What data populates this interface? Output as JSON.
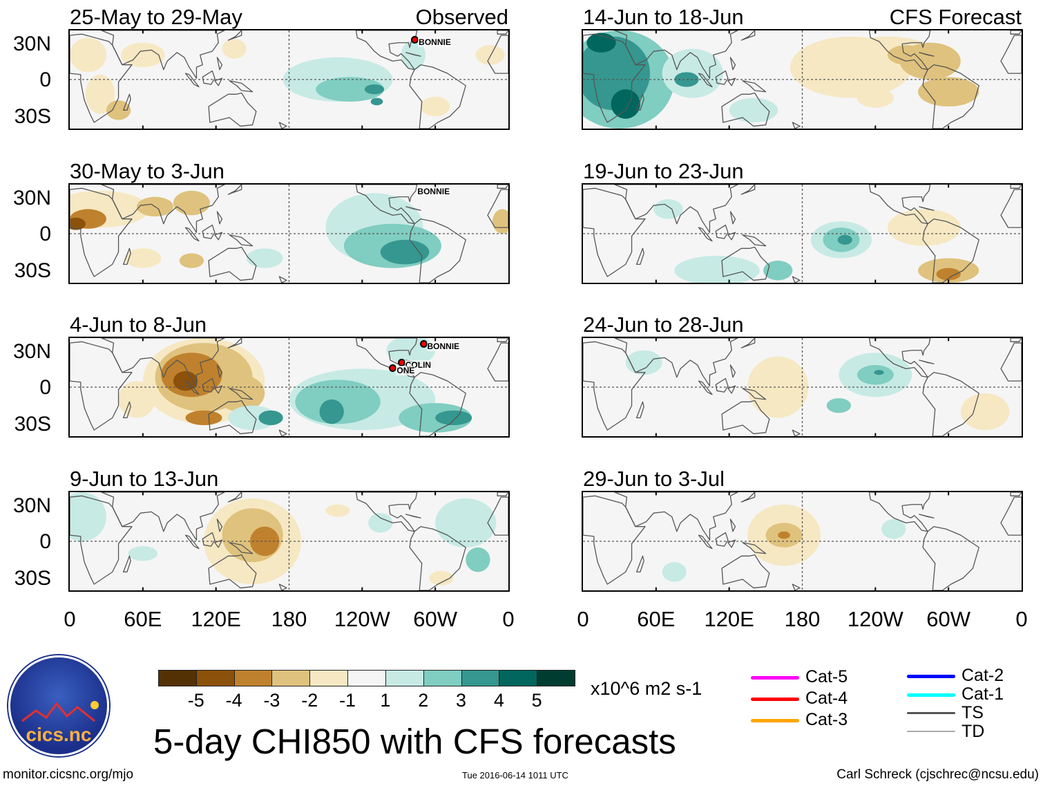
{
  "headers": {
    "observed": "Observed",
    "forecast": "CFS Forecast"
  },
  "y_axis_labels": [
    "30N",
    "0",
    "30S"
  ],
  "x_axis_labels": [
    "0",
    "60E",
    "120E",
    "180",
    "120W",
    "60W",
    "0"
  ],
  "panels": [
    {
      "title": "25-May to 29-May",
      "group": "observed",
      "features": [
        [
          15,
          20,
          15,
          14,
          -1
        ],
        [
          25,
          -12,
          12,
          16,
          -1
        ],
        [
          40,
          -25,
          10,
          8,
          -2
        ],
        [
          60,
          20,
          18,
          10,
          -1
        ],
        [
          135,
          25,
          10,
          8,
          -1
        ],
        [
          220,
          0,
          45,
          18,
          1
        ],
        [
          230,
          -8,
          28,
          10,
          2
        ],
        [
          250,
          -8,
          8,
          4,
          3
        ],
        [
          252,
          -18,
          5,
          3,
          3
        ],
        [
          282,
          20,
          10,
          12,
          1
        ],
        [
          300,
          -22,
          12,
          8,
          -1
        ],
        [
          345,
          20,
          12,
          8,
          -1
        ]
      ],
      "storms": [
        {
          "name": "BONNIE",
          "lon": 283,
          "lat": 32
        }
      ]
    },
    {
      "title": "30-May to 3-Jun",
      "group": "observed",
      "features": [
        [
          25,
          20,
          40,
          15,
          -1
        ],
        [
          15,
          12,
          15,
          8,
          -3
        ],
        [
          5,
          8,
          8,
          5,
          -4
        ],
        [
          70,
          22,
          15,
          8,
          -2
        ],
        [
          100,
          25,
          15,
          10,
          -2
        ],
        [
          60,
          -20,
          15,
          8,
          -1
        ],
        [
          100,
          -22,
          10,
          6,
          -2
        ],
        [
          160,
          -20,
          15,
          8,
          1
        ],
        [
          250,
          5,
          40,
          28,
          1
        ],
        [
          265,
          -10,
          40,
          18,
          2
        ],
        [
          275,
          -15,
          20,
          10,
          3
        ],
        [
          355,
          10,
          8,
          10,
          -2
        ]
      ],
      "storms": [
        {
          "name": "BONNIE",
          "lon": 282,
          "lat": 36
        }
      ]
    },
    {
      "title": "4-Jun to 8-Jun",
      "group": "observed",
      "features": [
        [
          110,
          5,
          50,
          35,
          -1
        ],
        [
          110,
          8,
          40,
          28,
          -2
        ],
        [
          100,
          10,
          25,
          18,
          -3
        ],
        [
          95,
          5,
          10,
          8,
          -4
        ],
        [
          140,
          -5,
          20,
          15,
          -2
        ],
        [
          110,
          -25,
          15,
          6,
          -3
        ],
        [
          55,
          -10,
          15,
          15,
          -1
        ],
        [
          150,
          -25,
          20,
          10,
          1
        ],
        [
          165,
          -25,
          10,
          6,
          3
        ],
        [
          240,
          -10,
          60,
          25,
          1
        ],
        [
          220,
          -12,
          35,
          18,
          2
        ],
        [
          215,
          -20,
          10,
          10,
          3
        ],
        [
          280,
          30,
          20,
          12,
          1
        ],
        [
          300,
          -25,
          30,
          12,
          2
        ],
        [
          315,
          -25,
          15,
          6,
          3
        ]
      ],
      "storms": [
        {
          "name": "BONNIE",
          "lon": 290,
          "lat": 35
        },
        {
          "name": "COLIN",
          "lon": 272,
          "lat": 20
        },
        {
          "name": "ONE",
          "lon": 265,
          "lat": 15
        }
      ]
    },
    {
      "title": "9-Jun to 13-Jun",
      "group": "observed",
      "features": [
        [
          10,
          20,
          20,
          20,
          1
        ],
        [
          150,
          0,
          40,
          35,
          -1
        ],
        [
          150,
          5,
          25,
          22,
          -2
        ],
        [
          160,
          0,
          12,
          12,
          -3
        ],
        [
          60,
          -10,
          12,
          6,
          1
        ],
        [
          220,
          25,
          10,
          5,
          -1
        ],
        [
          255,
          15,
          10,
          8,
          1
        ],
        [
          325,
          15,
          25,
          20,
          1
        ],
        [
          335,
          -15,
          10,
          10,
          2
        ],
        [
          305,
          -30,
          10,
          6,
          -1
        ]
      ],
      "storms": []
    },
    {
      "title": "14-Jun to 18-Jun",
      "group": "forecast",
      "features": [
        [
          30,
          0,
          45,
          40,
          2
        ],
        [
          25,
          5,
          30,
          30,
          3
        ],
        [
          35,
          -20,
          12,
          12,
          4
        ],
        [
          15,
          30,
          12,
          8,
          4
        ],
        [
          90,
          5,
          25,
          20,
          1
        ],
        [
          85,
          0,
          10,
          6,
          3
        ],
        [
          140,
          -25,
          20,
          10,
          1
        ],
        [
          220,
          10,
          50,
          25,
          -1
        ],
        [
          250,
          20,
          40,
          15,
          -1
        ],
        [
          285,
          15,
          25,
          15,
          -2
        ],
        [
          265,
          20,
          15,
          8,
          -2
        ],
        [
          300,
          -10,
          25,
          12,
          -2
        ],
        [
          240,
          -15,
          15,
          8,
          -1
        ]
      ],
      "storms": []
    },
    {
      "title": "19-Jun to 23-Jun",
      "group": "forecast",
      "features": [
        [
          110,
          -30,
          35,
          12,
          1
        ],
        [
          160,
          -30,
          12,
          8,
          2
        ],
        [
          212,
          -5,
          25,
          15,
          1
        ],
        [
          212,
          -5,
          15,
          10,
          2
        ],
        [
          215,
          -5,
          6,
          4,
          3
        ],
        [
          280,
          5,
          30,
          15,
          -1
        ],
        [
          300,
          -30,
          25,
          10,
          -2
        ],
        [
          300,
          -33,
          10,
          5,
          -3
        ],
        [
          70,
          20,
          12,
          8,
          1
        ]
      ],
      "storms": []
    },
    {
      "title": "24-Jun to 28-Jun",
      "group": "forecast",
      "features": [
        [
          160,
          0,
          25,
          25,
          -1
        ],
        [
          240,
          10,
          30,
          18,
          1
        ],
        [
          240,
          10,
          15,
          8,
          2
        ],
        [
          243,
          12,
          4,
          2,
          3
        ],
        [
          210,
          -15,
          10,
          6,
          2
        ],
        [
          330,
          -20,
          20,
          15,
          -1
        ],
        [
          50,
          20,
          15,
          10,
          1
        ]
      ],
      "storms": []
    },
    {
      "title": "29-Jun to 3-Jul",
      "group": "forecast",
      "features": [
        [
          165,
          5,
          30,
          25,
          -1
        ],
        [
          165,
          5,
          15,
          10,
          -2
        ],
        [
          165,
          5,
          5,
          3,
          -3
        ],
        [
          255,
          10,
          10,
          8,
          1
        ],
        [
          75,
          -25,
          10,
          8,
          1
        ]
      ],
      "storms": []
    }
  ],
  "colorbar": {
    "colors": [
      "#543005",
      "#8c510a",
      "#bf812d",
      "#dfc27d",
      "#f6e8c3",
      "#f5f5f5",
      "#c7eae5",
      "#80cdc1",
      "#35978f",
      "#01665e",
      "#003c30"
    ],
    "labels": [
      "-5",
      "-4",
      "-3",
      "-2",
      "-1",
      "1",
      "2",
      "3",
      "4",
      "5"
    ],
    "units": "x10^6 m2 s-1"
  },
  "legend": [
    {
      "label": "Cat-5",
      "color": "#ff00ff"
    },
    {
      "label": "Cat-4",
      "color": "#ff0000"
    },
    {
      "label": "Cat-3",
      "color": "#ffa500"
    },
    {
      "label": "Cat-2",
      "color": "#0000ff"
    },
    {
      "label": "Cat-1",
      "color": "#00ffff"
    },
    {
      "label": "TS",
      "color": "#555555"
    },
    {
      "label": "TD",
      "color": "#aaaaaa"
    }
  ],
  "logo": {
    "text": "cics.nc",
    "ring_text": "Cooperative Institute for Climate and Satellites"
  },
  "main_title": "5-day CHI850 with CFS forecasts",
  "footer": {
    "left": "monitor.cicsnc.org/mjo",
    "center": "Tue 2016-06-14 1011 UTC",
    "right": "Carl Schreck (cjschrec@ncsu.edu)"
  }
}
